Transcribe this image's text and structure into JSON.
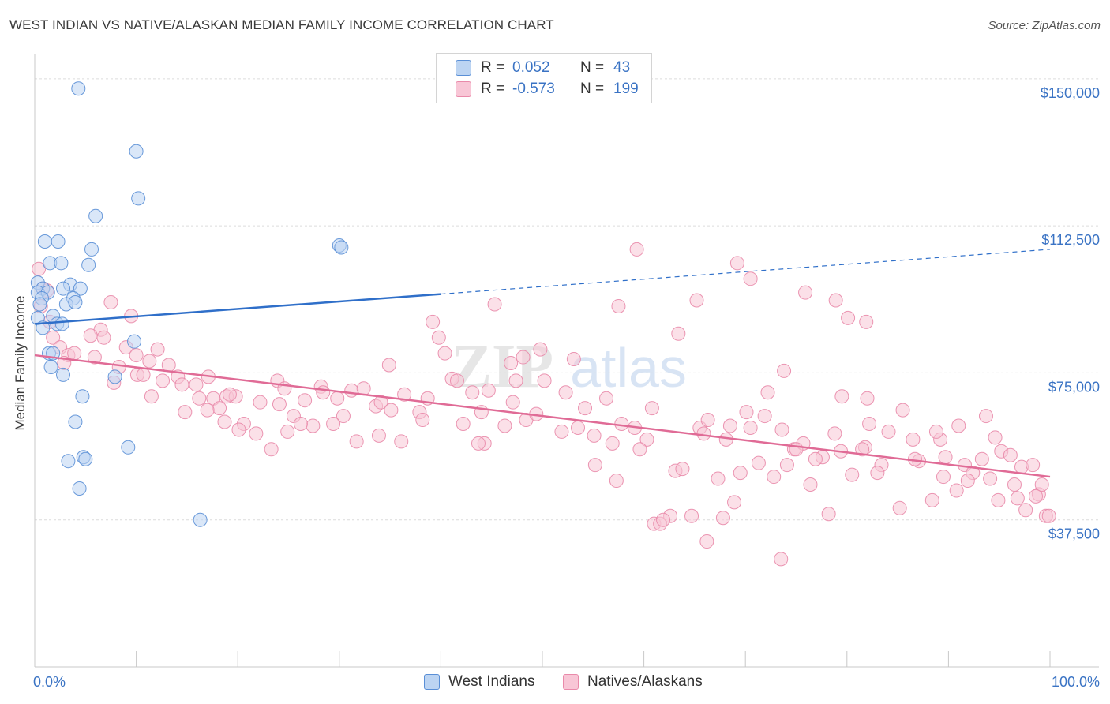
{
  "header": {
    "title": "WEST INDIAN VS NATIVE/ALASKAN MEDIAN FAMILY INCOME CORRELATION CHART",
    "source": "Source: ZipAtlas.com"
  },
  "colors": {
    "west_indian_fill": "#bcd4f2",
    "west_indian_stroke": "#5a8fd6",
    "west_indian_line": "#2f6fc9",
    "native_fill": "#f8c6d6",
    "native_stroke": "#e98aaa",
    "native_line": "#e06b96",
    "axis_label": "#3a73c4",
    "grid": "#dcdcdc"
  },
  "legend": {
    "rows": [
      {
        "r_label": "R =",
        "r_value": "0.052",
        "n_label": "N =",
        "n_value": "43"
      },
      {
        "r_label": "R =",
        "r_value": "-0.573",
        "n_label": "N =",
        "n_value": "199"
      }
    ]
  },
  "bottom_legend": {
    "series1": "West Indians",
    "series2": "Natives/Alaskans"
  },
  "chart_data": {
    "type": "scatter",
    "title": "WEST INDIAN VS NATIVE/ALASKAN MEDIAN FAMILY INCOME CORRELATION CHART",
    "ylabel": "Median Family Income",
    "xlabel": "",
    "x_tick_labels": [
      "0.0%",
      "100.0%"
    ],
    "y_tick_labels": [
      "$150,000",
      "$112,500",
      "$75,000",
      "$37,500"
    ],
    "y_ticks": [
      150000,
      112500,
      75000,
      37500
    ],
    "xlim": [
      0,
      100
    ],
    "ylim": [
      0,
      155000
    ],
    "grid": true,
    "watermark": "ZIPatlas",
    "series": [
      {
        "name": "West Indians",
        "r": 0.052,
        "n": 43,
        "trend": {
          "x0": 0,
          "y0": 87500,
          "x1": 100,
          "y1": 106500,
          "solid_until_x": 40
        },
        "points": [
          [
            4.3,
            147500
          ],
          [
            10,
            131500
          ],
          [
            10.2,
            119500
          ],
          [
            6,
            115000
          ],
          [
            1,
            108500
          ],
          [
            2.3,
            108500
          ],
          [
            5.6,
            106500
          ],
          [
            30,
            107500
          ],
          [
            30.2,
            107000
          ],
          [
            1.5,
            103000
          ],
          [
            2.6,
            103000
          ],
          [
            5.3,
            102500
          ],
          [
            0.3,
            98000
          ],
          [
            3.5,
            97500
          ],
          [
            0.8,
            96500
          ],
          [
            2.8,
            96500
          ],
          [
            4.5,
            96500
          ],
          [
            0.3,
            95500
          ],
          [
            1.3,
            95500
          ],
          [
            0.7,
            94000
          ],
          [
            3.8,
            94000
          ],
          [
            0.5,
            92500
          ],
          [
            3.1,
            92500
          ],
          [
            4,
            93000
          ],
          [
            1.8,
            89500
          ],
          [
            0.3,
            89000
          ],
          [
            2.2,
            87500
          ],
          [
            2.7,
            87500
          ],
          [
            0.8,
            86500
          ],
          [
            9.8,
            83000
          ],
          [
            1.4,
            80000
          ],
          [
            1.8,
            80000
          ],
          [
            1.6,
            76500
          ],
          [
            2.8,
            74500
          ],
          [
            7.9,
            74000
          ],
          [
            4.7,
            69000
          ],
          [
            4,
            62500
          ],
          [
            9.2,
            56000
          ],
          [
            4.8,
            53500
          ],
          [
            5,
            53000
          ],
          [
            3.3,
            52500
          ],
          [
            4.4,
            45500
          ],
          [
            16.3,
            37500
          ]
        ]
      },
      {
        "name": "Natives/Alaskans",
        "r": -0.573,
        "n": 199,
        "trend": {
          "x0": 0,
          "y0": 79500,
          "x1": 100,
          "y1": 48500
        },
        "points": [
          [
            0.4,
            101500
          ],
          [
            0.8,
            96500
          ],
          [
            1.2,
            96000
          ],
          [
            0.6,
            92000
          ],
          [
            1.5,
            88000
          ],
          [
            7.5,
            93000
          ],
          [
            9.5,
            89500
          ],
          [
            1.8,
            84000
          ],
          [
            2.5,
            81500
          ],
          [
            6.5,
            86000
          ],
          [
            5.5,
            84500
          ],
          [
            6.8,
            84000
          ],
          [
            12.1,
            81000
          ],
          [
            9,
            81500
          ],
          [
            10,
            79500
          ],
          [
            3.3,
            79500
          ],
          [
            3.9,
            80000
          ],
          [
            5.9,
            79000
          ],
          [
            2.9,
            77500
          ],
          [
            8.3,
            76500
          ],
          [
            11.3,
            78000
          ],
          [
            13.2,
            77000
          ],
          [
            7.8,
            72500
          ],
          [
            10.1,
            74500
          ],
          [
            10.7,
            74500
          ],
          [
            12.6,
            73000
          ],
          [
            14.1,
            74000
          ],
          [
            14.5,
            72000
          ],
          [
            15.9,
            72000
          ],
          [
            17.1,
            74000
          ],
          [
            11.5,
            69000
          ],
          [
            14.8,
            65000
          ],
          [
            16.2,
            68500
          ],
          [
            17.6,
            68500
          ],
          [
            18.9,
            69000
          ],
          [
            18.2,
            66000
          ],
          [
            17,
            65500
          ],
          [
            19.8,
            69000
          ],
          [
            20.6,
            62000
          ],
          [
            22.2,
            67500
          ],
          [
            23.9,
            73000
          ],
          [
            24.6,
            71000
          ],
          [
            24.1,
            67000
          ],
          [
            25.5,
            64000
          ],
          [
            26.6,
            68000
          ],
          [
            28.2,
            71500
          ],
          [
            28.4,
            70000
          ],
          [
            29.8,
            68500
          ],
          [
            30.4,
            64000
          ],
          [
            31.2,
            70500
          ],
          [
            32.4,
            71000
          ],
          [
            33.6,
            66500
          ],
          [
            34.1,
            67500
          ],
          [
            35.1,
            65500
          ],
          [
            34.9,
            77000
          ],
          [
            36.4,
            69500
          ],
          [
            37.9,
            65000
          ],
          [
            38.7,
            68500
          ],
          [
            39.2,
            88000
          ],
          [
            39.8,
            84000
          ],
          [
            40.4,
            80000
          ],
          [
            41.1,
            73500
          ],
          [
            42.2,
            62000
          ],
          [
            43.1,
            70000
          ],
          [
            44.7,
            70500
          ],
          [
            44,
            65000
          ],
          [
            44.3,
            57000
          ],
          [
            45.3,
            92500
          ],
          [
            46.3,
            61500
          ],
          [
            46.9,
            77500
          ],
          [
            47.4,
            73000
          ],
          [
            48.4,
            63000
          ],
          [
            49.4,
            64500
          ],
          [
            50.2,
            73000
          ],
          [
            48.1,
            79000
          ],
          [
            51.9,
            60000
          ],
          [
            52.3,
            70000
          ],
          [
            53.5,
            61000
          ],
          [
            54.2,
            66000
          ],
          [
            55.1,
            59000
          ],
          [
            56.3,
            68500
          ],
          [
            56.9,
            57000
          ],
          [
            57.8,
            62000
          ],
          [
            59.1,
            61000
          ],
          [
            60.3,
            58000
          ],
          [
            60.8,
            66000
          ],
          [
            61,
            36500
          ],
          [
            61.6,
            36500
          ],
          [
            62.6,
            38500
          ],
          [
            63.1,
            50000
          ],
          [
            64.7,
            38500
          ],
          [
            65.5,
            61000
          ],
          [
            66.3,
            63000
          ],
          [
            67.3,
            48000
          ],
          [
            68.1,
            58000
          ],
          [
            69.5,
            49500
          ],
          [
            70.1,
            65000
          ],
          [
            71.3,
            52000
          ],
          [
            72.2,
            70000
          ],
          [
            72.8,
            48500
          ],
          [
            73.6,
            60500
          ],
          [
            74.8,
            55500
          ],
          [
            75.7,
            57000
          ],
          [
            76.4,
            46500
          ],
          [
            77.6,
            53500
          ],
          [
            78.8,
            59500
          ],
          [
            79.4,
            55000
          ],
          [
            80.5,
            49000
          ],
          [
            81.8,
            56000
          ],
          [
            82.2,
            62000
          ],
          [
            83.4,
            51500
          ],
          [
            84.1,
            60000
          ],
          [
            85.2,
            40500
          ],
          [
            86.5,
            58000
          ],
          [
            87.1,
            52500
          ],
          [
            88.4,
            42500
          ],
          [
            89.2,
            58000
          ],
          [
            89.7,
            53500
          ],
          [
            90.8,
            45000
          ],
          [
            91.6,
            51500
          ],
          [
            92.4,
            49500
          ],
          [
            93.3,
            53000
          ],
          [
            94.1,
            48000
          ],
          [
            94.6,
            58500
          ],
          [
            95.2,
            55000
          ],
          [
            96.1,
            54000
          ],
          [
            96.5,
            46500
          ],
          [
            97.2,
            51000
          ],
          [
            97.6,
            40000
          ],
          [
            98.3,
            51500
          ],
          [
            98.9,
            44000
          ],
          [
            99.2,
            46500
          ],
          [
            99.6,
            38500
          ],
          [
            93.7,
            64000
          ],
          [
            91,
            61500
          ],
          [
            88.8,
            60000
          ],
          [
            85.5,
            65500
          ],
          [
            82,
            68500
          ],
          [
            79.5,
            69000
          ],
          [
            75,
            55500
          ],
          [
            70.5,
            61000
          ],
          [
            67.8,
            38000
          ],
          [
            66.2,
            32000
          ],
          [
            73.5,
            27500
          ],
          [
            78.2,
            39000
          ],
          [
            81.5,
            55500
          ],
          [
            83,
            49500
          ],
          [
            86.7,
            53000
          ],
          [
            89.5,
            48500
          ],
          [
            91.9,
            47500
          ],
          [
            94.9,
            42500
          ],
          [
            96.8,
            43000
          ],
          [
            98.6,
            43500
          ],
          [
            99.9,
            38500
          ],
          [
            55.2,
            51500
          ],
          [
            57.3,
            47500
          ],
          [
            59.6,
            55500
          ],
          [
            61.9,
            37500
          ],
          [
            63.8,
            50500
          ],
          [
            65.9,
            59500
          ],
          [
            68.9,
            42000
          ],
          [
            71.9,
            64000
          ],
          [
            74.1,
            51500
          ],
          [
            76.9,
            53000
          ],
          [
            69.2,
            103000
          ],
          [
            70.5,
            99000
          ],
          [
            75.9,
            95500
          ],
          [
            78.9,
            93500
          ],
          [
            80.1,
            89000
          ],
          [
            81.9,
            88000
          ],
          [
            73.8,
            75500
          ],
          [
            68.5,
            61500
          ],
          [
            65.2,
            93500
          ],
          [
            63.4,
            85000
          ],
          [
            59.3,
            106500
          ],
          [
            57.5,
            92000
          ],
          [
            53.1,
            78500
          ],
          [
            49.8,
            81000
          ],
          [
            47.1,
            67500
          ],
          [
            43.7,
            57000
          ],
          [
            41.6,
            73000
          ],
          [
            38.2,
            63000
          ],
          [
            36.1,
            57500
          ],
          [
            33.9,
            59000
          ],
          [
            31.7,
            57500
          ],
          [
            29.4,
            62000
          ],
          [
            27.4,
            61500
          ],
          [
            26.2,
            62000
          ],
          [
            24.9,
            60000
          ],
          [
            23.3,
            55500
          ],
          [
            21.8,
            59500
          ],
          [
            20.1,
            60500
          ],
          [
            18.7,
            62500
          ],
          [
            19.2,
            69500
          ]
        ]
      }
    ]
  }
}
